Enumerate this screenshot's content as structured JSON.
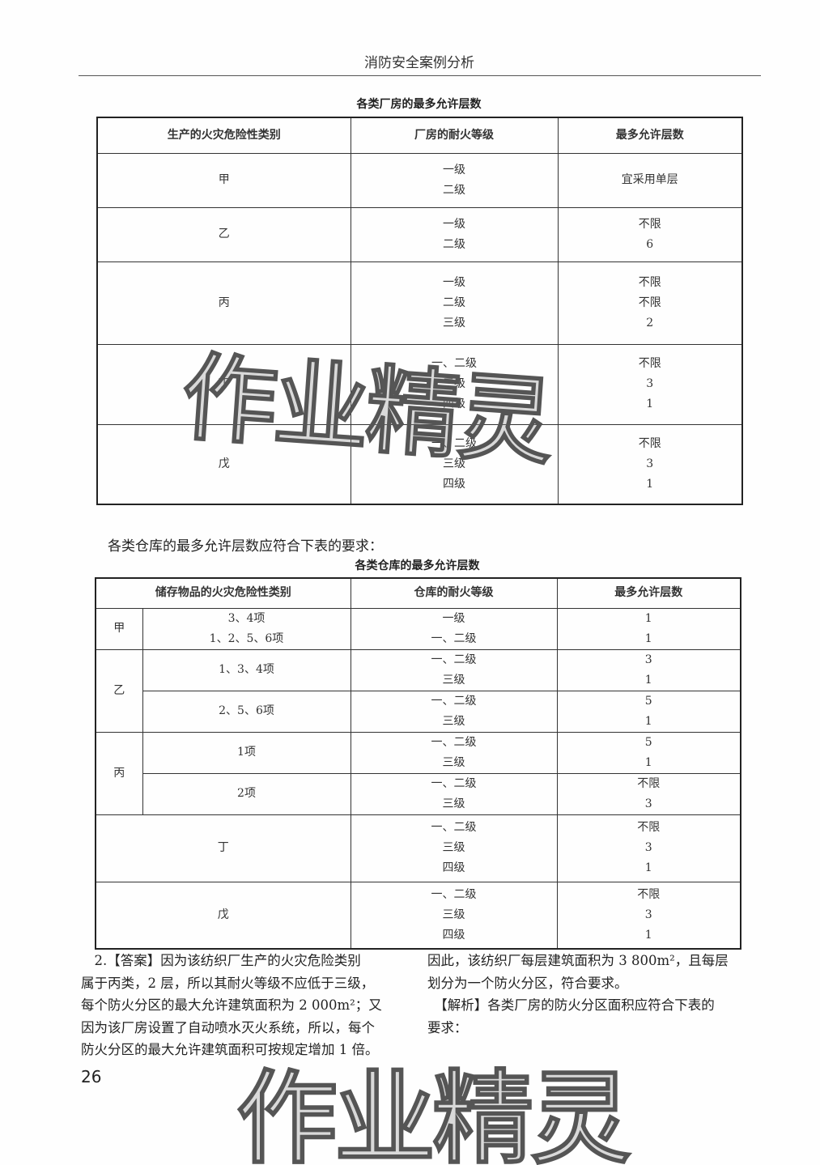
{
  "running_head": "消防安全案例分析",
  "table1": {
    "title": "各类厂房的最多允许层数",
    "headers": [
      "生产的火灾危险性类别",
      "厂房的耐火等级",
      "最多允许层数"
    ],
    "rows": [
      {
        "category": "甲",
        "grades": [
          "一级",
          "二级"
        ],
        "floors": [
          "宜采用单层"
        ]
      },
      {
        "category": "乙",
        "grades": [
          "一级",
          "二级"
        ],
        "floors": [
          "不限",
          "6"
        ]
      },
      {
        "category": "丙",
        "grades": [
          "一级",
          "二级",
          "三级"
        ],
        "floors": [
          "不限",
          "不限",
          "2"
        ]
      },
      {
        "category": "丁",
        "grades": [
          "一、二级",
          "三级",
          "四级"
        ],
        "floors": [
          "不限",
          "3",
          "1"
        ]
      },
      {
        "category": "戊",
        "grades": [
          "一、二级",
          "三级",
          "四级"
        ],
        "floors": [
          "不限",
          "3",
          "1"
        ]
      }
    ]
  },
  "intro2": "各类仓库的最多允许层数应符合下表的要求：",
  "table2": {
    "title": "各类仓库的最多允许层数",
    "headers": [
      "储存物品的火灾危险性类别",
      "仓库的耐火等级",
      "最多允许层数"
    ],
    "groups": [
      {
        "category": "甲",
        "subs": [
          {
            "items": [
              "3、4项",
              "1、2、5、6项"
            ],
            "grades": [
              "一级",
              "一、二级"
            ],
            "floors": [
              "1",
              "1"
            ]
          }
        ]
      },
      {
        "category": "乙",
        "subs": [
          {
            "items": [
              "1、3、4项"
            ],
            "grades": [
              "一、二级",
              "三级"
            ],
            "floors": [
              "3",
              "1"
            ]
          },
          {
            "items": [
              "2、5、6项"
            ],
            "grades": [
              "一、二级",
              "三级"
            ],
            "floors": [
              "5",
              "1"
            ]
          }
        ]
      },
      {
        "category": "丙",
        "subs": [
          {
            "items": [
              "1项"
            ],
            "grades": [
              "一、二级",
              "三级"
            ],
            "floors": [
              "5",
              "1"
            ]
          },
          {
            "items": [
              "2项"
            ],
            "grades": [
              "一、二级",
              "三级"
            ],
            "floors": [
              "不限",
              "3"
            ]
          }
        ]
      },
      {
        "category": "丁",
        "subs": [
          {
            "items": [],
            "grades": [
              "一、二级",
              "三级",
              "四级"
            ],
            "floors": [
              "不限",
              "3",
              "1"
            ]
          }
        ]
      },
      {
        "category": "戊",
        "subs": [
          {
            "items": [],
            "grades": [
              "一、二级",
              "三级",
              "四级"
            ],
            "floors": [
              "不限",
              "3",
              "1"
            ]
          }
        ]
      }
    ]
  },
  "answer": {
    "left_lines": [
      "　2.【答案】因为该纺织厂生产的火灾危险类别",
      "属于丙类，2 层，所以其耐火等级不应低于三级，",
      "每个防火分区的最大允许建筑面积为 2 000m²；又",
      "因为该厂房设置了自动喷水灭火系统，所以，每个",
      "防火分区的最大允许建筑面积可按规定增加 1 倍。"
    ],
    "right_lines": [
      "因此，该纺织厂每层建筑面积为 3 800m²，且每层",
      "划分为一个防火分区，符合要求。",
      "　【解析】各类厂房的防火分区面积应符合下表的",
      "要求："
    ]
  },
  "page_number": "26",
  "watermark": "作业精灵"
}
